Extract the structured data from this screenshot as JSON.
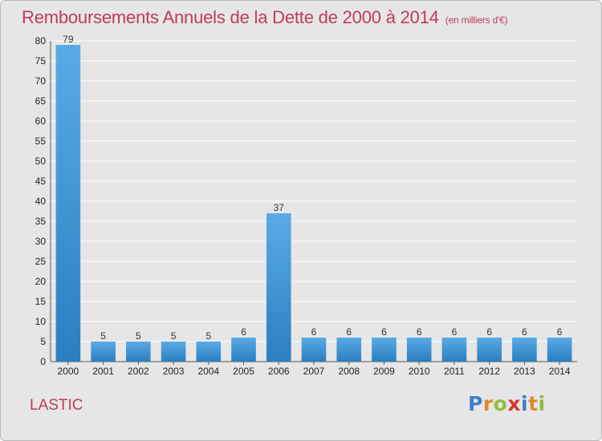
{
  "title": "Remboursements Annuels de la Dette de 2000 à 2014",
  "unit": "(en milliers d'€)",
  "commune": "LASTIC",
  "logo": {
    "p": "P",
    "r": "r",
    "o": "o",
    "x": "x",
    "i": "i",
    "t": "t",
    "i2": "i"
  },
  "colors": {
    "bar_light": "#5aaae6",
    "bar_dark": "#2a7fc0",
    "title": "#c03a5c",
    "background": "#e6e6e6"
  },
  "chart_data": {
    "type": "bar",
    "title": "Remboursements Annuels de la Dette de 2000 à 2014",
    "xlabel": "",
    "ylabel": "",
    "categories": [
      "2000",
      "2001",
      "2002",
      "2003",
      "2004",
      "2005",
      "2006",
      "2007",
      "2008",
      "2009",
      "2010",
      "2011",
      "2012",
      "2013",
      "2014"
    ],
    "values": [
      79,
      5,
      5,
      5,
      5,
      6,
      37,
      6,
      6,
      6,
      6,
      6,
      6,
      6,
      6
    ],
    "ylim": [
      0,
      80
    ],
    "yticks": [
      0,
      5,
      10,
      15,
      20,
      25,
      30,
      35,
      40,
      45,
      50,
      55,
      60,
      65,
      70,
      75,
      80
    ],
    "grid": true,
    "legend": "none"
  }
}
